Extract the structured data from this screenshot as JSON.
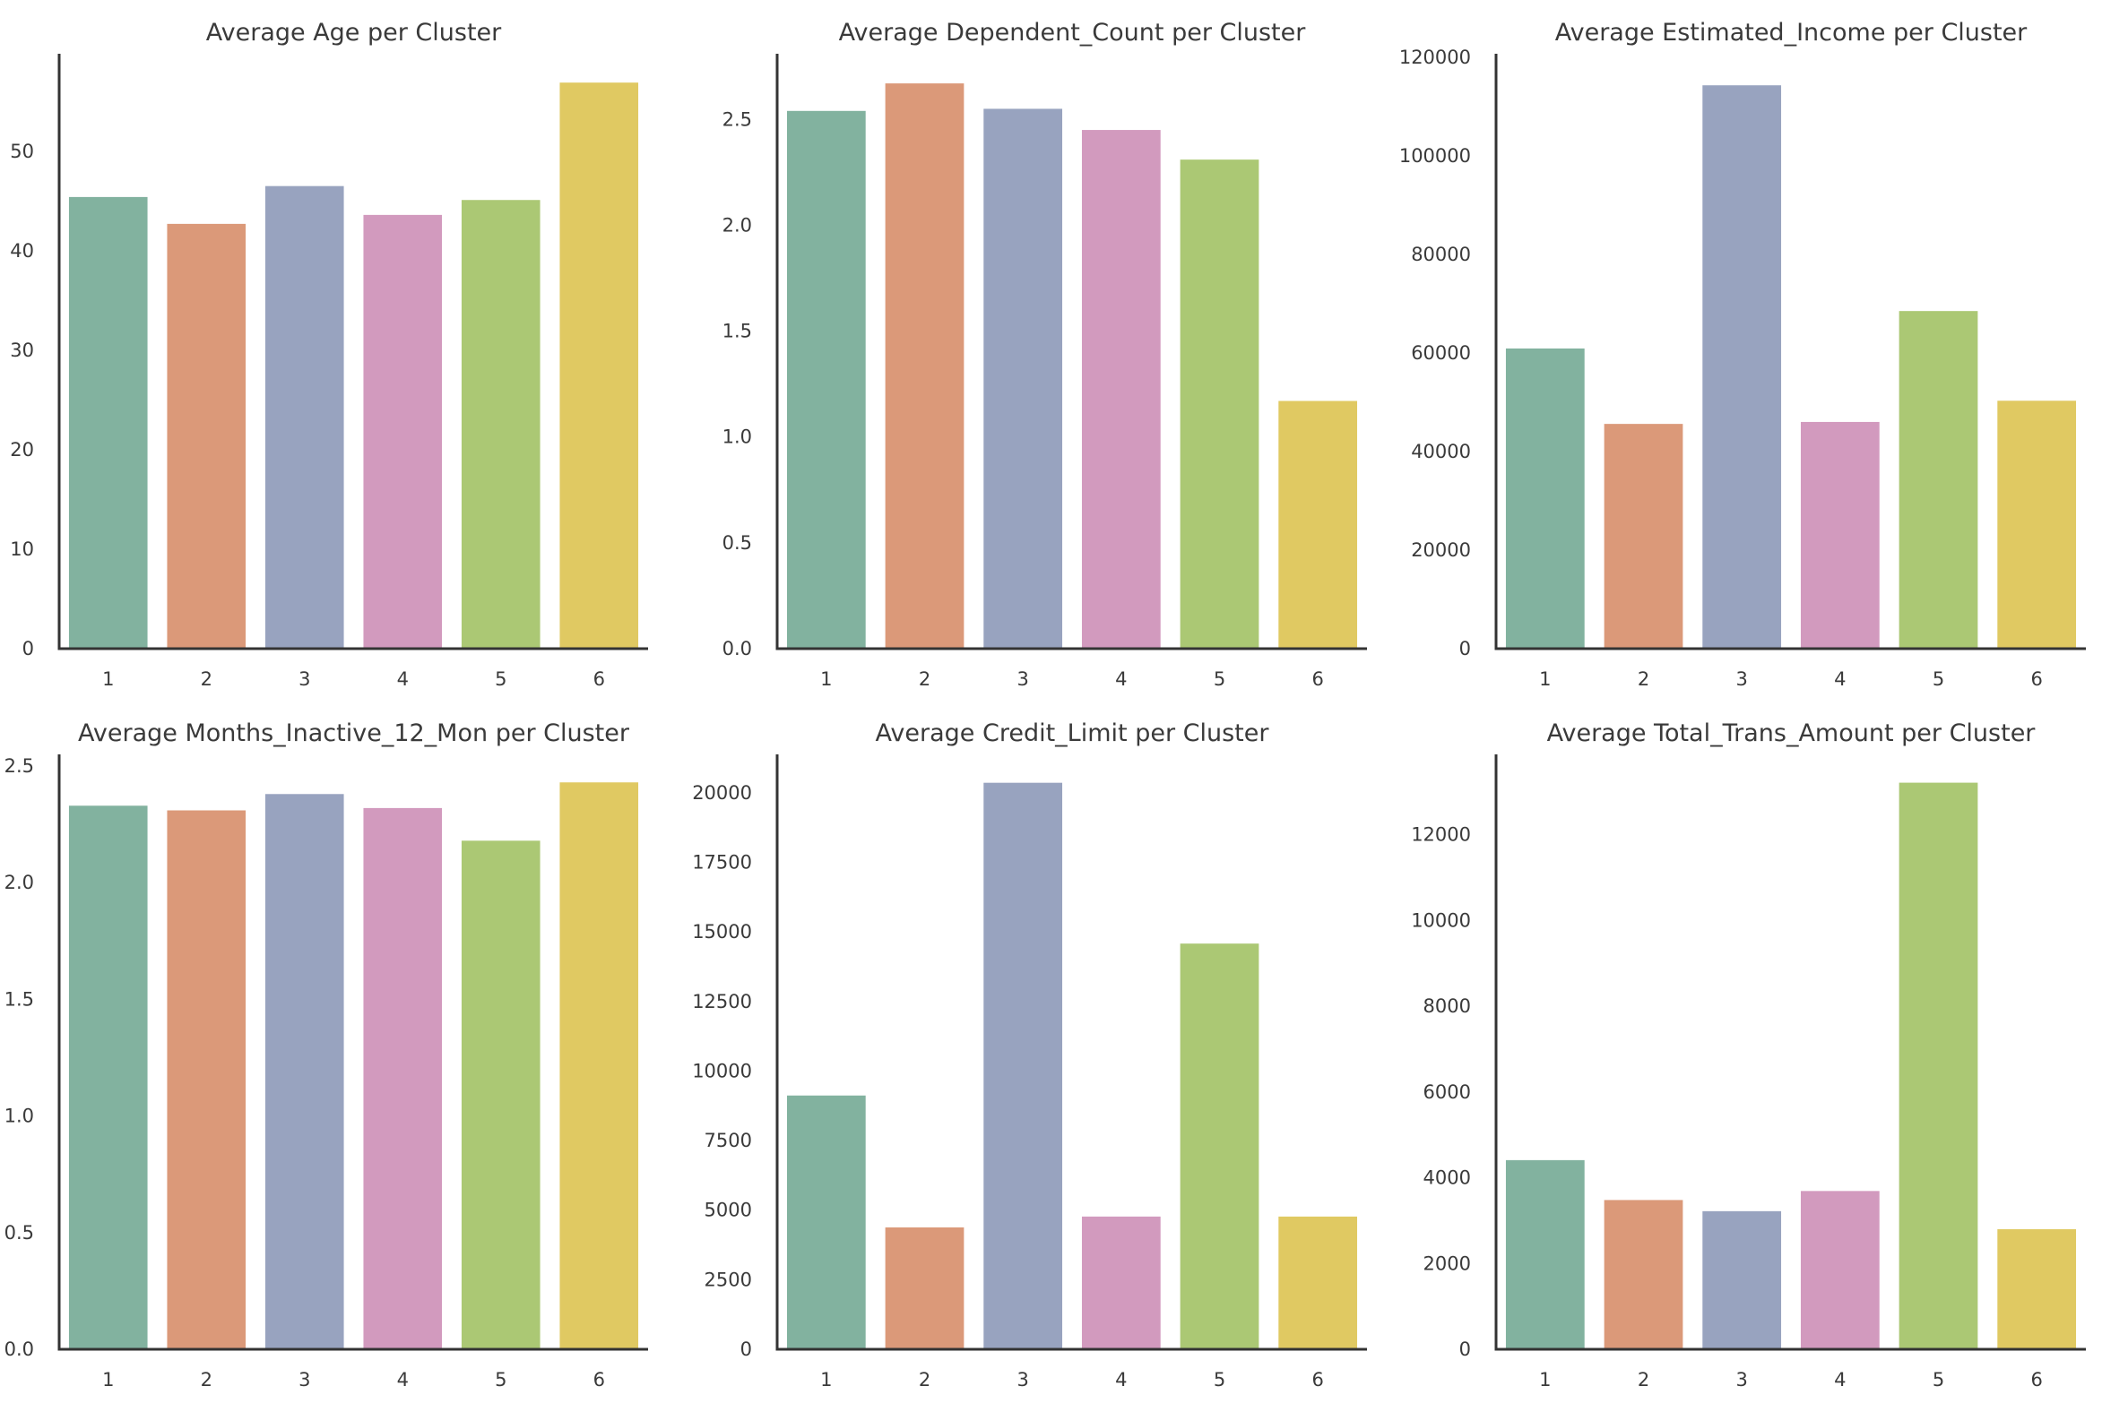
{
  "figure": {
    "background": "#ffffff",
    "palette": [
      "#82b29f",
      "#db9979",
      "#98a3bf",
      "#d29abe",
      "#abc874",
      "#e0c962"
    ]
  },
  "chart_data": [
    {
      "type": "bar",
      "title": "Average Age per Cluster",
      "xlabel": "",
      "ylabel": "",
      "categories": [
        "1",
        "2",
        "3",
        "4",
        "5",
        "6"
      ],
      "values": [
        45.4,
        42.7,
        46.5,
        43.6,
        45.1,
        56.9
      ],
      "ylim": [
        0,
        59.8
      ],
      "yticks": [
        0,
        10,
        20,
        30,
        40,
        50
      ],
      "ytick_labels": [
        "0",
        "10",
        "20",
        "30",
        "40",
        "50"
      ],
      "grid": false,
      "legend": "none"
    },
    {
      "type": "bar",
      "title": "Average Dependent_Count per Cluster",
      "xlabel": "",
      "ylabel": "",
      "categories": [
        "1",
        "2",
        "3",
        "4",
        "5",
        "6"
      ],
      "values": [
        2.54,
        2.67,
        2.55,
        2.45,
        2.31,
        1.17
      ],
      "ylim": [
        0,
        2.81
      ],
      "yticks": [
        0,
        0.5,
        1.0,
        1.5,
        2.0,
        2.5
      ],
      "ytick_labels": [
        "0.0",
        "0.5",
        "1.0",
        "1.5",
        "2.0",
        "2.5"
      ],
      "grid": false,
      "legend": "none"
    },
    {
      "type": "bar",
      "title": "Average Estimated_Income per Cluster",
      "xlabel": "",
      "ylabel": "",
      "categories": [
        "1",
        "2",
        "3",
        "4",
        "5",
        "6"
      ],
      "values": [
        60900,
        45600,
        114300,
        46000,
        68500,
        50300
      ],
      "ylim": [
        0,
        120700
      ],
      "yticks": [
        0,
        20000,
        40000,
        60000,
        80000,
        100000,
        120000
      ],
      "ytick_labels": [
        "0",
        "20000",
        "40000",
        "60000",
        "80000",
        "100000",
        "120000"
      ],
      "grid": false,
      "legend": "none"
    },
    {
      "type": "bar",
      "title": "Average Months_Inactive_12_Mon per Cluster",
      "xlabel": "",
      "ylabel": "",
      "categories": [
        "1",
        "2",
        "3",
        "4",
        "5",
        "6"
      ],
      "values": [
        2.33,
        2.31,
        2.38,
        2.32,
        2.18,
        2.43
      ],
      "ylim": [
        0,
        2.55
      ],
      "yticks": [
        0,
        0.5,
        1.0,
        1.5,
        2.0,
        2.5
      ],
      "ytick_labels": [
        "0.0",
        "0.5",
        "1.0",
        "1.5",
        "2.0",
        "2.5"
      ],
      "grid": false,
      "legend": "none"
    },
    {
      "type": "bar",
      "title": "Average Credit_Limit per Cluster",
      "xlabel": "",
      "ylabel": "",
      "categories": [
        "1",
        "2",
        "3",
        "4",
        "5",
        "6"
      ],
      "values": [
        9120,
        4380,
        20360,
        4770,
        14580,
        4770
      ],
      "ylim": [
        0,
        21380
      ],
      "yticks": [
        0,
        2500,
        5000,
        7500,
        10000,
        12500,
        15000,
        17500,
        20000
      ],
      "ytick_labels": [
        "0",
        "2500",
        "5000",
        "7500",
        "10000",
        "12500",
        "15000",
        "17500",
        "20000"
      ],
      "grid": false,
      "legend": "none"
    },
    {
      "type": "bar",
      "title": "Average Total_Trans_Amount per Cluster",
      "xlabel": "",
      "ylabel": "",
      "categories": [
        "1",
        "2",
        "3",
        "4",
        "5",
        "6"
      ],
      "values": [
        4410,
        3480,
        3220,
        3690,
        13210,
        2800
      ],
      "ylim": [
        0,
        13870
      ],
      "yticks": [
        0,
        2000,
        4000,
        6000,
        8000,
        10000,
        12000
      ],
      "ytick_labels": [
        "0",
        "2000",
        "4000",
        "6000",
        "8000",
        "10000",
        "12000"
      ],
      "grid": false,
      "legend": "none"
    }
  ]
}
